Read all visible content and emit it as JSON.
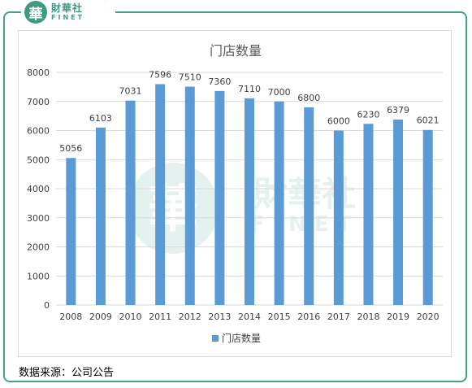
{
  "logo": {
    "seal_char": "華",
    "cn": "財華社",
    "en": "FINET"
  },
  "watermark": {
    "seal_char": "華",
    "cn": "財華社",
    "en": "FINET"
  },
  "source": "数据来源：公司公告",
  "colors": {
    "bar": "#5b9bd5",
    "frame": "#46a08a",
    "grid": "#d9d9d9",
    "text": "#404040"
  },
  "chart_data": {
    "type": "bar",
    "title": "门店数量",
    "categories": [
      "2008",
      "2009",
      "2010",
      "2011",
      "2012",
      "2013",
      "2014",
      "2015",
      "2016",
      "2017",
      "2018",
      "2019",
      "2020"
    ],
    "series": [
      {
        "name": "门店数量",
        "values": [
          5056,
          6103,
          7031,
          7596,
          7510,
          7360,
          7110,
          7000,
          6800,
          6000,
          6230,
          6379,
          6021
        ]
      }
    ],
    "ylim": [
      0,
      8000
    ],
    "yticks": [
      0,
      1000,
      2000,
      3000,
      4000,
      5000,
      6000,
      7000,
      8000
    ],
    "grid": true,
    "legend": "bottom",
    "data_labels": true
  }
}
